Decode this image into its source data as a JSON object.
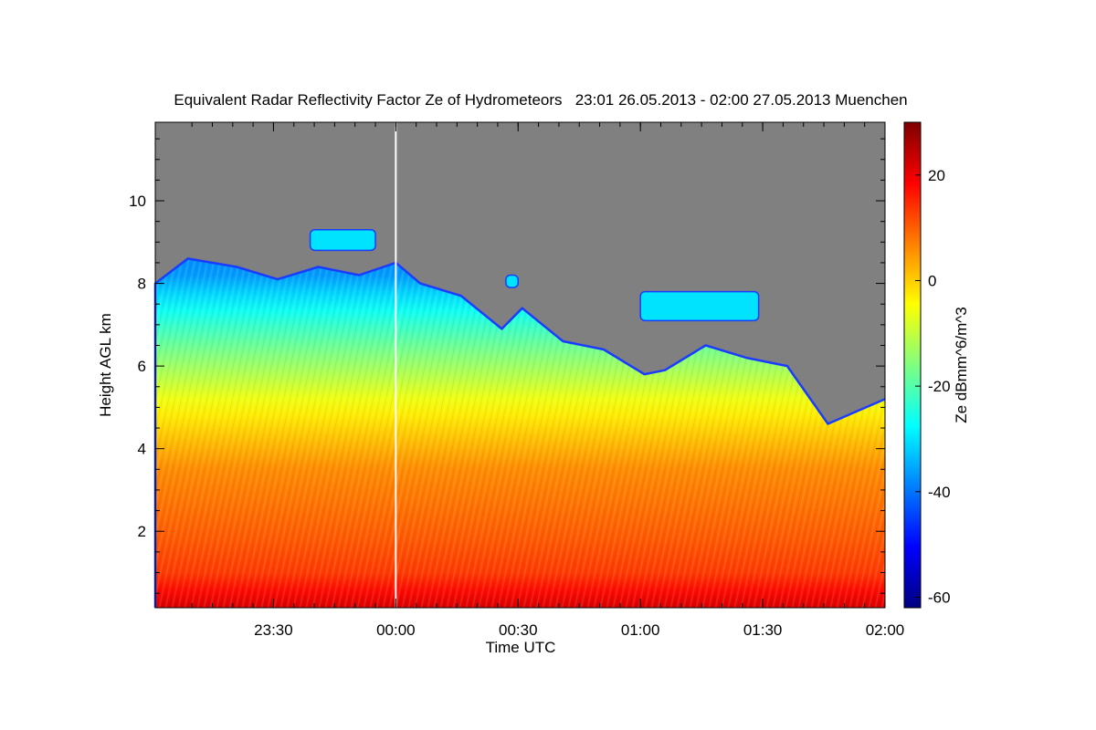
{
  "chart_data": {
    "type": "heatmap",
    "title": "Equivalent Radar Reflectivity Factor Ze of Hydrometeors   23:01 26.05.2013 - 02:00 27.05.2013 Muenchen",
    "xlabel": "Time UTC",
    "ylabel": "Height AGL km",
    "colorbar_label": "Ze dBmm^6/m^3",
    "x_ticks": [
      {
        "label": "23:30",
        "minutes": 29
      },
      {
        "label": "00:00",
        "minutes": 59
      },
      {
        "label": "00:30",
        "minutes": 89
      },
      {
        "label": "01:00",
        "minutes": 119
      },
      {
        "label": "01:30",
        "minutes": 149
      },
      {
        "label": "02:00",
        "minutes": 179
      }
    ],
    "xlim_minutes": [
      0,
      179
    ],
    "y_ticks": [
      2,
      4,
      6,
      8,
      10
    ],
    "ylim": [
      0.15,
      11.9
    ],
    "colorbar_ticks": [
      -60,
      -40,
      -20,
      0,
      20
    ],
    "colorbar_range": [
      -62,
      30
    ],
    "colormap": [
      "#00007f",
      "#0000ff",
      "#0080ff",
      "#00ffff",
      "#80ff80",
      "#ffff00",
      "#ff8000",
      "#ff0000",
      "#7f0000"
    ],
    "no_signal_color": "#808080",
    "data_gap_marker_minutes": 59,
    "echo_top_km": [
      {
        "minutes": 0,
        "top": 8.0
      },
      {
        "minutes": 8,
        "top": 8.6
      },
      {
        "minutes": 20,
        "top": 8.4
      },
      {
        "minutes": 30,
        "top": 8.1
      },
      {
        "minutes": 40,
        "top": 8.4
      },
      {
        "minutes": 50,
        "top": 8.2
      },
      {
        "minutes": 59,
        "top": 8.5
      },
      {
        "minutes": 65,
        "top": 8.0
      },
      {
        "minutes": 75,
        "top": 7.7
      },
      {
        "minutes": 80,
        "top": 7.3
      },
      {
        "minutes": 85,
        "top": 6.9
      },
      {
        "minutes": 90,
        "top": 7.4
      },
      {
        "minutes": 100,
        "top": 6.6
      },
      {
        "minutes": 110,
        "top": 6.4
      },
      {
        "minutes": 120,
        "top": 5.8
      },
      {
        "minutes": 125,
        "top": 5.9
      },
      {
        "minutes": 135,
        "top": 6.5
      },
      {
        "minutes": 145,
        "top": 6.2
      },
      {
        "minutes": 155,
        "top": 6.0
      },
      {
        "minutes": 165,
        "top": 4.6
      },
      {
        "minutes": 172,
        "top": 4.9
      },
      {
        "minutes": 179,
        "top": 5.2
      }
    ],
    "reflectivity_profile_dBZ": [
      {
        "height": 0.3,
        "ze": 22
      },
      {
        "height": 0.8,
        "ze": 14
      },
      {
        "height": 2.0,
        "ze": 10
      },
      {
        "height": 3.5,
        "ze": 6
      },
      {
        "height": 5.0,
        "ze": -4
      },
      {
        "height": 6.5,
        "ze": -18
      },
      {
        "height": 7.5,
        "ze": -28
      },
      {
        "height": 8.3,
        "ze": -38
      }
    ],
    "cloud_patches": [
      {
        "minutes_start": 38,
        "minutes_end": 54,
        "height_bottom": 8.8,
        "height_top": 9.3
      },
      {
        "minutes_start": 86,
        "minutes_end": 89,
        "height_bottom": 7.9,
        "height_top": 8.2
      },
      {
        "minutes_start": 119,
        "minutes_end": 148,
        "height_bottom": 7.1,
        "height_top": 7.8
      }
    ],
    "grid": false,
    "colorbar_position": "right"
  }
}
